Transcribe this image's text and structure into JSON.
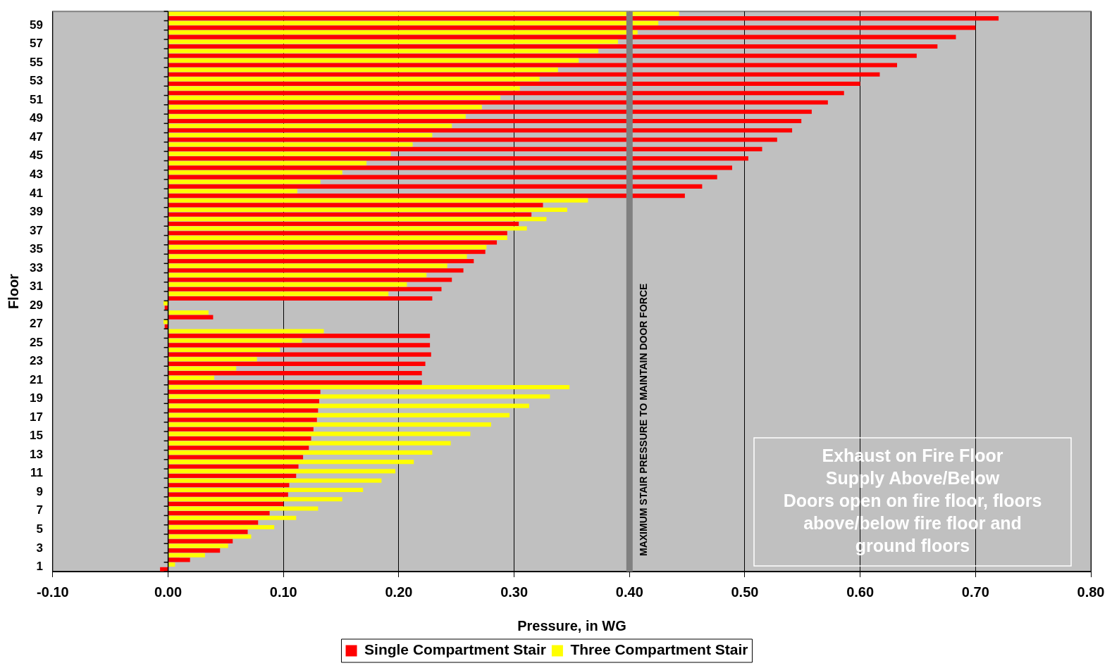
{
  "chart_data": {
    "type": "bar",
    "orientation": "horizontal",
    "xlabel": "Pressure, in WG",
    "ylabel": "Floor",
    "categories": [
      null,
      "59",
      null,
      "57",
      null,
      "55",
      null,
      "53",
      null,
      "51",
      null,
      "49",
      null,
      "47",
      null,
      "45",
      null,
      "43",
      null,
      "41",
      null,
      "39",
      null,
      "37",
      null,
      "35",
      null,
      "33",
      null,
      "31",
      null,
      "29",
      null,
      "27",
      null,
      "25",
      null,
      "23",
      null,
      "21",
      null,
      "19",
      null,
      "17",
      null,
      "15",
      null,
      "13",
      null,
      "11",
      null,
      "9",
      null,
      "7",
      null,
      "5",
      null,
      "3",
      null,
      "1"
    ],
    "series": [
      {
        "name": "Single Compartment Stair",
        "color": "#ff0000",
        "values": [
          0.72,
          0.7,
          0.683,
          0.667,
          0.649,
          0.632,
          0.617,
          0.6,
          0.586,
          0.572,
          0.558,
          0.549,
          0.541,
          0.528,
          0.515,
          0.503,
          0.489,
          0.476,
          0.463,
          0.448,
          0.325,
          0.315,
          0.304,
          0.294,
          0.285,
          0.275,
          0.265,
          0.256,
          0.246,
          0.237,
          0.229,
          -0.003,
          0.039,
          -0.003,
          0.227,
          0.227,
          0.228,
          0.223,
          0.22,
          0.22,
          0.132,
          0.131,
          0.13,
          0.129,
          0.126,
          0.124,
          0.122,
          0.117,
          0.113,
          0.111,
          0.105,
          0.104,
          0.1,
          0.088,
          0.078,
          0.069,
          0.056,
          0.045,
          0.019,
          -0.007
        ]
      },
      {
        "name": "Three Compartment Stair",
        "color": "#ffff00",
        "values": [
          0.443,
          0.425,
          0.407,
          0.39,
          0.373,
          0.356,
          0.338,
          0.322,
          0.305,
          0.288,
          0.272,
          0.258,
          0.246,
          0.229,
          0.212,
          0.193,
          0.172,
          0.151,
          0.132,
          0.112,
          0.364,
          0.346,
          0.328,
          0.311,
          0.294,
          0.276,
          0.259,
          0.242,
          0.224,
          0.207,
          0.191,
          -0.004,
          0.035,
          -0.004,
          0.135,
          0.116,
          0.097,
          0.077,
          0.059,
          0.04,
          0.348,
          0.331,
          0.313,
          0.296,
          0.28,
          0.262,
          0.245,
          0.229,
          0.213,
          0.197,
          0.185,
          0.169,
          0.151,
          0.13,
          0.111,
          0.092,
          0.072,
          0.052,
          0.032,
          0.006
        ]
      }
    ],
    "xlim": [
      -0.1,
      0.8
    ],
    "xticks": [
      {
        "value": -0.1,
        "label": "-0.10"
      },
      {
        "value": 0,
        "label": "0.00"
      },
      {
        "value": 0.1,
        "label": "0.10"
      },
      {
        "value": 0.2,
        "label": "0.20"
      },
      {
        "value": 0.3,
        "label": "0.30"
      },
      {
        "value": 0.4,
        "label": "0.40"
      },
      {
        "value": 0.5,
        "label": "0.50"
      },
      {
        "value": 0.6,
        "label": "0.60"
      },
      {
        "value": 0.7,
        "label": "0.70"
      },
      {
        "value": 0.8,
        "label": "0.80"
      }
    ],
    "ref_lines": [
      {
        "axis": "x",
        "value": 0.4,
        "label": "MAXIMUM STAIR PRESSURE TO MAINTAIN DOOR FORCE",
        "color": "#808080"
      }
    ],
    "annotations": [
      "Exhaust on Fire Floor\nSupply Above/Below\nDoors open on fire floor, floors\nabove/below fire floor and\nground floors"
    ],
    "grid": "x",
    "legend": "bottom"
  }
}
